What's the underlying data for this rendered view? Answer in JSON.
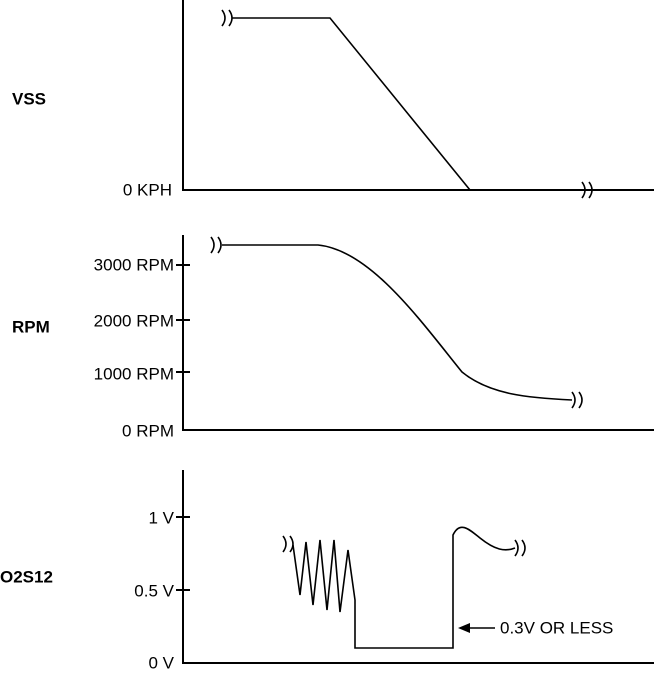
{
  "panels": [
    {
      "label": "VSS",
      "ticks": [
        "0 KPH"
      ]
    },
    {
      "label": "RPM",
      "ticks": [
        "3000 RPM",
        "2000 RPM",
        "1000 RPM",
        "0 RPM"
      ]
    },
    {
      "label": "O2S12",
      "ticks": [
        "1 V",
        "0.5 V",
        "0 V"
      ],
      "annotation": "0.3V OR LESS"
    }
  ]
}
